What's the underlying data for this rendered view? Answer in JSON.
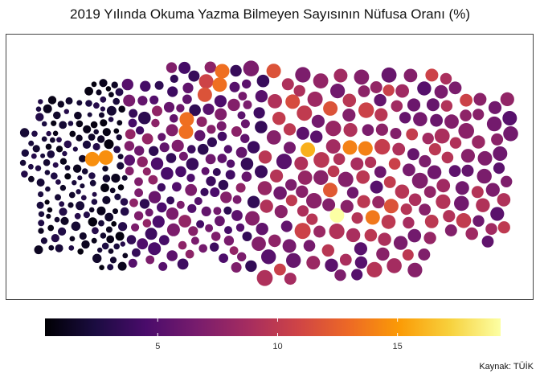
{
  "chart_data": {
    "type": "scatter",
    "title": "2019 Yılında Okuma Yazma Bilmeyen Sayısının Nüfusa Oranı (%)",
    "caption": "Kaynak: TÜİK",
    "color_scale": {
      "name": "inferno",
      "min": 0.3,
      "max": 19.3,
      "ticks": [
        "5",
        "10",
        "15"
      ],
      "tick_values": [
        5,
        10,
        15
      ],
      "stops": [
        "#000004",
        "#1b0c41",
        "#4a0c6b",
        "#781c6d",
        "#a52c60",
        "#cf4446",
        "#ed6925",
        "#fb9b06",
        "#f7d13d",
        "#fcffa4"
      ]
    },
    "grid": false,
    "legend": "bottom"
  }
}
